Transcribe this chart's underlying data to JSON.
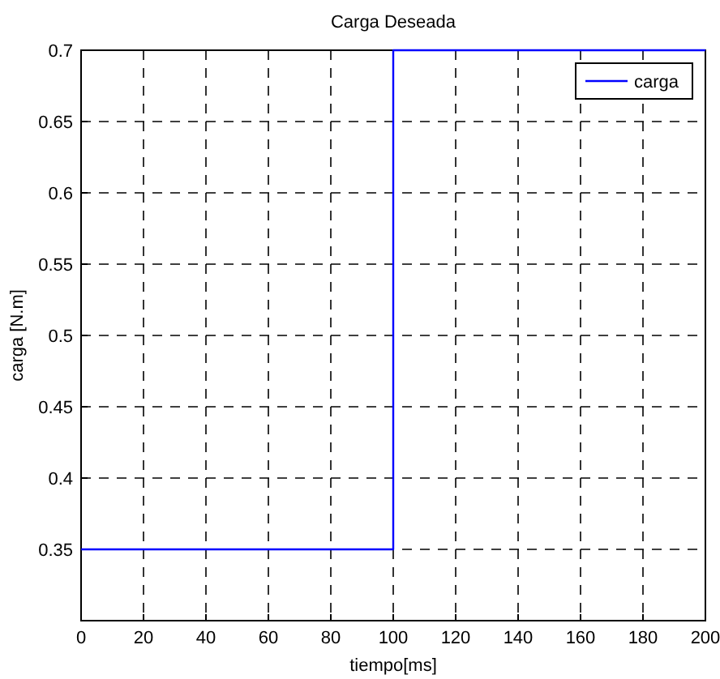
{
  "chart_data": {
    "type": "line",
    "title": "Carga Deseada",
    "xlabel": "tiempo[ms]",
    "ylabel": "carga [N.m]",
    "series": [
      {
        "name": "carga",
        "color": "#0000ff",
        "x": [
          0,
          100,
          100,
          200
        ],
        "values": [
          0.35,
          0.35,
          0.7,
          0.7
        ]
      }
    ],
    "xlim": [
      0,
      200
    ],
    "xticks": [
      0,
      20,
      40,
      60,
      80,
      100,
      120,
      140,
      160,
      180,
      200
    ],
    "ylim": [
      0.3,
      0.7
    ],
    "yticks": [
      0.35,
      0.4,
      0.45,
      0.5,
      0.55,
      0.6,
      0.65,
      0.7
    ],
    "grid": true,
    "legend": "top right",
    "marker": "none",
    "line_style": "solid"
  }
}
